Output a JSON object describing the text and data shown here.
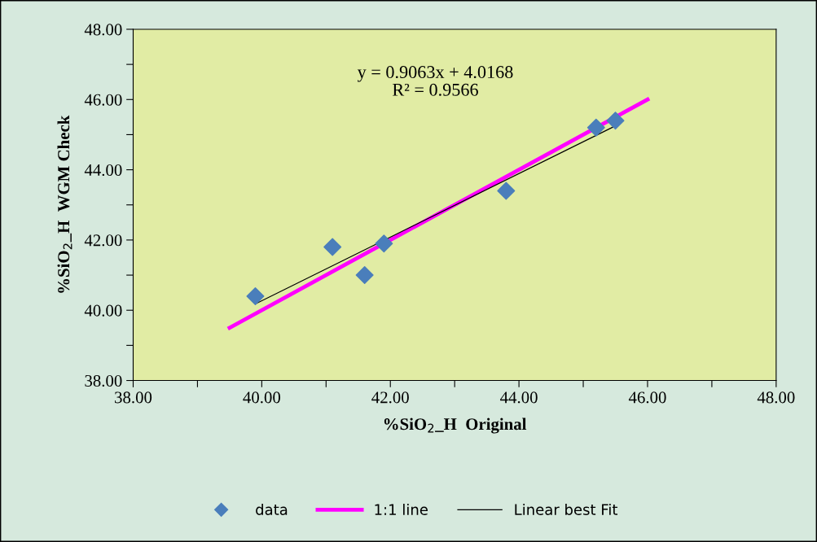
{
  "chart_data": {
    "type": "scatter",
    "xlabel": "%SiO$_{2}$_H  Original",
    "ylabel": "%SiO$_{2}$_H  WGM Check",
    "xlim": [
      38,
      48
    ],
    "ylim": [
      38,
      48
    ],
    "xticks": [
      {
        "value": 38,
        "label": "38.00"
      },
      {
        "value": 39,
        "label": null
      },
      {
        "value": 40,
        "label": "40.00"
      },
      {
        "value": 41,
        "label": null
      },
      {
        "value": 42,
        "label": "42.00"
      },
      {
        "value": 43,
        "label": null
      },
      {
        "value": 44,
        "label": "44.00"
      },
      {
        "value": 45,
        "label": null
      },
      {
        "value": 46,
        "label": "46.00"
      },
      {
        "value": 47,
        "label": null
      },
      {
        "value": 48,
        "label": "48.00"
      }
    ],
    "yticks": [
      {
        "value": 38,
        "label": "38.00"
      },
      {
        "value": 39,
        "label": null
      },
      {
        "value": 40,
        "label": "40.00"
      },
      {
        "value": 41,
        "label": null
      },
      {
        "value": 42,
        "label": "42.00"
      },
      {
        "value": 43,
        "label": null
      },
      {
        "value": 44,
        "label": "44.00"
      },
      {
        "value": 45,
        "label": null
      },
      {
        "value": 46,
        "label": "46.00"
      },
      {
        "value": 47,
        "label": null
      },
      {
        "value": 48,
        "label": "48.00"
      }
    ],
    "series": [
      {
        "name": "data",
        "color": "#4a7ebb",
        "marker": "diamond",
        "x": [
          39.9,
          41.1,
          41.6,
          41.9,
          43.8,
          45.2,
          45.5
        ],
        "values": [
          40.4,
          41.8,
          41.0,
          41.9,
          43.4,
          45.2,
          45.4
        ]
      },
      {
        "name": "1:1 line",
        "type": "line",
        "color": "#ff00ff",
        "x": [
          39.5,
          46
        ],
        "values": [
          39.5,
          46
        ]
      },
      {
        "name": "Linear best Fit",
        "type": "line",
        "color": "#000000",
        "x": [
          39.9,
          45.5
        ],
        "values": [
          40.18,
          45.25
        ]
      }
    ],
    "annotations": [
      "y = 0.9063x + 4.0168\nR² = 0.9566"
    ],
    "grid": false,
    "legend": "bottom"
  }
}
